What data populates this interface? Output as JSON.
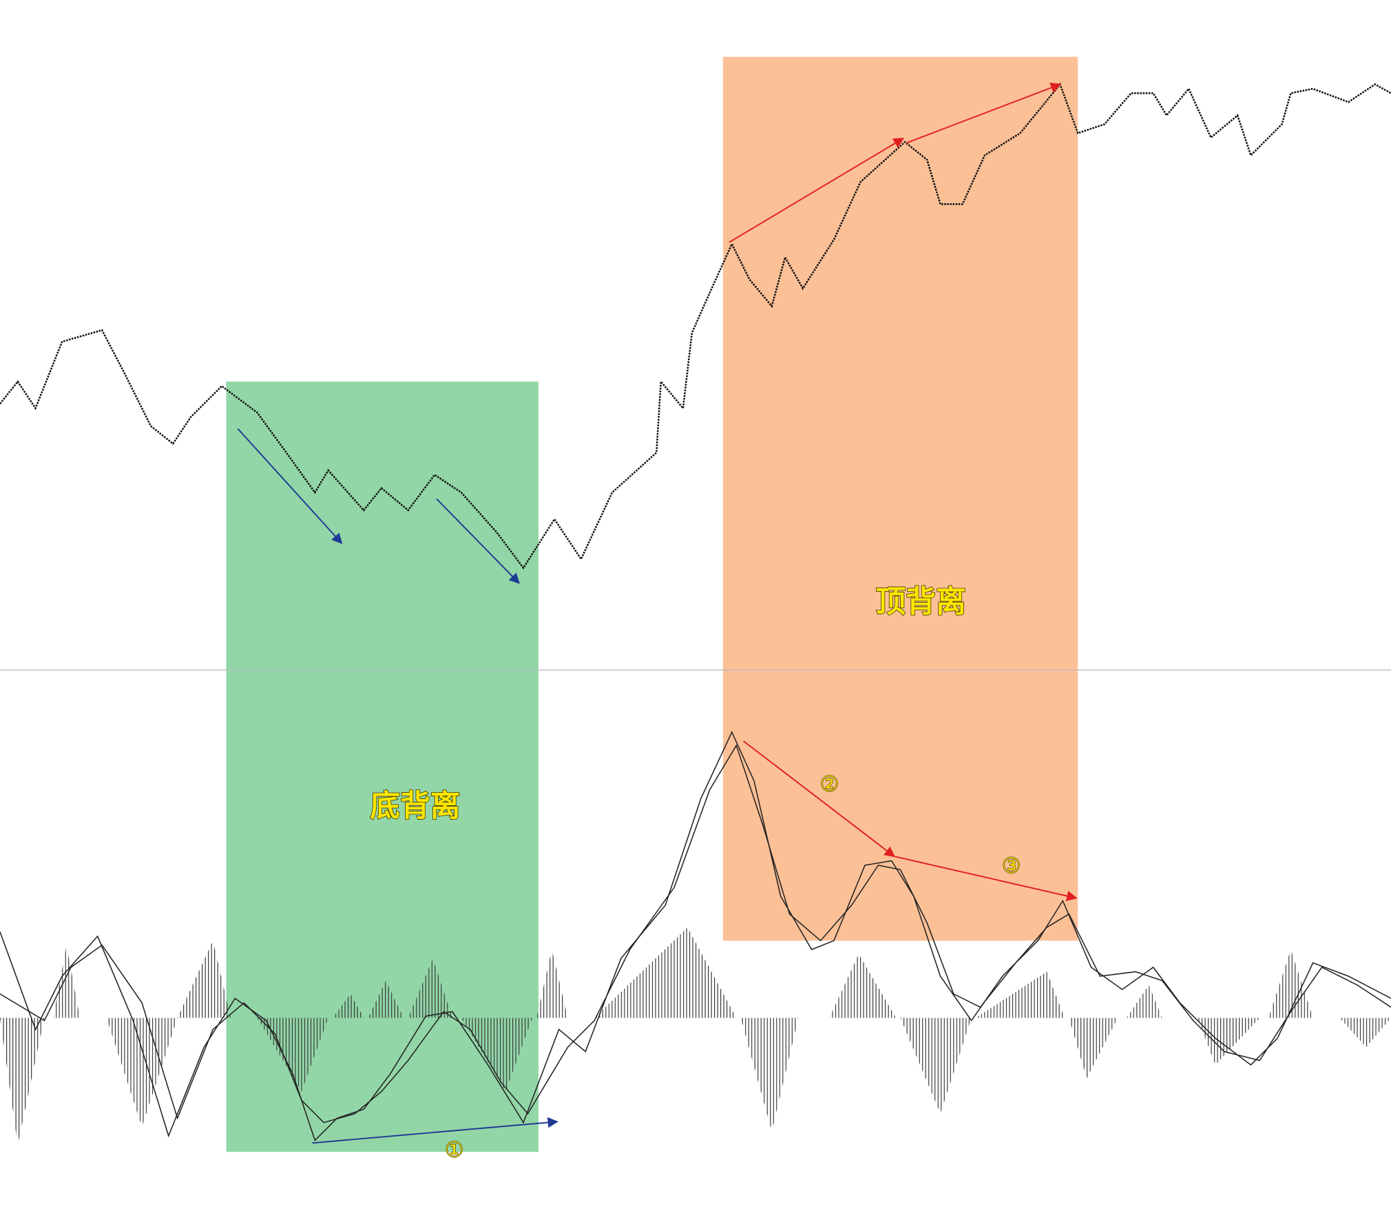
{
  "labels": {
    "bottom_divergence": "底背离",
    "top_divergence": "顶背离",
    "mark_1": "①",
    "mark_2": "②",
    "mark_3": "③"
  }
}
